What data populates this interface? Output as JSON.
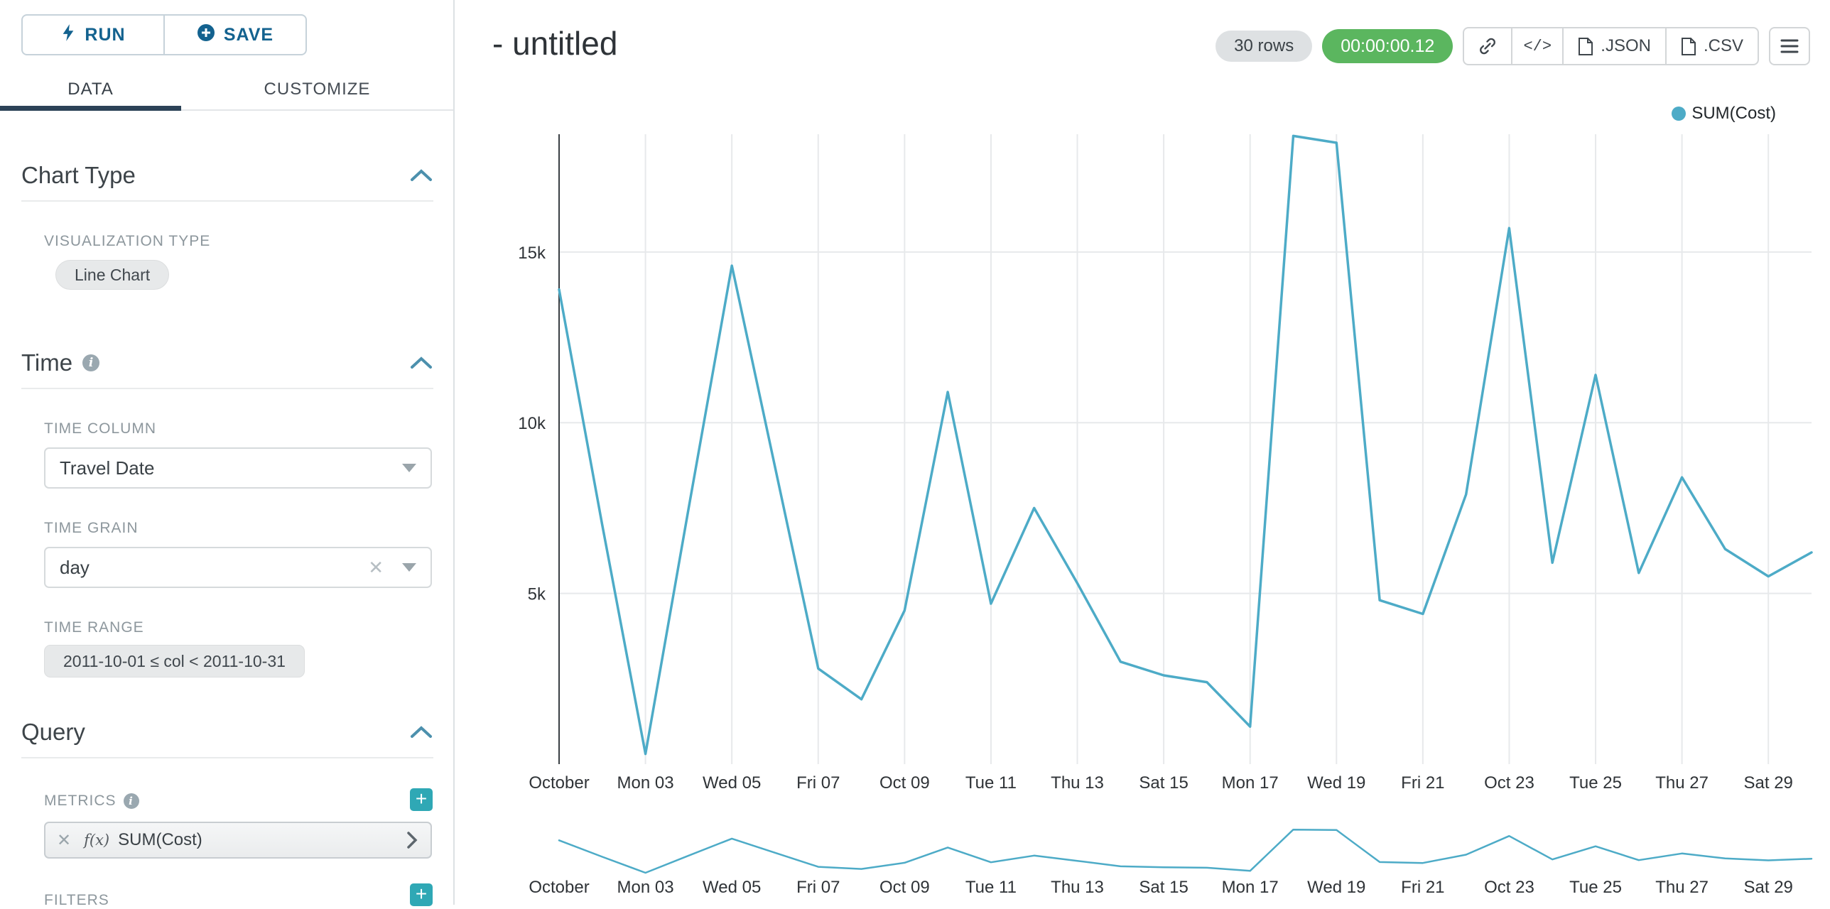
{
  "sidebar": {
    "run_label": "RUN",
    "save_label": "SAVE",
    "tabs": {
      "data": "DATA",
      "customize": "CUSTOMIZE"
    },
    "chart_type": {
      "title": "Chart Type",
      "viz_type_label": "VISUALIZATION TYPE",
      "viz_type_value": "Line Chart"
    },
    "time": {
      "title": "Time",
      "time_column_label": "TIME COLUMN",
      "time_column_value": "Travel Date",
      "time_grain_label": "TIME GRAIN",
      "time_grain_value": "day",
      "time_range_label": "TIME RANGE",
      "time_range_value": "2011-10-01 ≤ col < 2011-10-31"
    },
    "query": {
      "title": "Query",
      "metrics_label": "METRICS",
      "metric_fx": "f(x)",
      "metric_name": "SUM(Cost)",
      "filters_label": "FILTERS"
    }
  },
  "header": {
    "title": "- untitled",
    "row_count": "30 rows",
    "query_time": "00:00:00.12",
    "embed_glyph": "</>",
    "json_label": ".JSON",
    "csv_label": ".CSV"
  },
  "legend": {
    "label": "SUM(Cost)",
    "color": "#4dabc7"
  },
  "icons": {
    "run": "lightning-bolt",
    "save": "plus-circle",
    "section_collapse": "chevron-up",
    "info": "info-circle",
    "dropdown": "caret-down",
    "clear": "x",
    "add": "plus",
    "share": "link",
    "embed": "code",
    "export": "document",
    "menu": "hamburger",
    "metric_expand": "chevron-right"
  },
  "colors": {
    "accent_navy": "#13628f",
    "tab_underline": "#2c4257",
    "teal_button": "#2fa8b5",
    "line": "#4dabc7",
    "success_green": "#5bb65f"
  },
  "chart_data": {
    "type": "line",
    "title": "",
    "x": [
      "2011-10-01",
      "2011-10-02",
      "2011-10-03",
      "2011-10-04",
      "2011-10-05",
      "2011-10-06",
      "2011-10-07",
      "2011-10-08",
      "2011-10-09",
      "2011-10-10",
      "2011-10-11",
      "2011-10-12",
      "2011-10-13",
      "2011-10-14",
      "2011-10-15",
      "2011-10-16",
      "2011-10-17",
      "2011-10-18",
      "2011-10-19",
      "2011-10-20",
      "2011-10-21",
      "2011-10-22",
      "2011-10-23",
      "2011-10-24",
      "2011-10-25",
      "2011-10-26",
      "2011-10-27",
      "2011-10-28",
      "2011-10-29",
      "2011-10-30"
    ],
    "series": [
      {
        "name": "SUM(Cost)",
        "values": [
          13900,
          7000,
          300,
          7500,
          14600,
          8700,
          2800,
          1900,
          4500,
          10900,
          4700,
          7500,
          5300,
          3000,
          2600,
          2400,
          1100,
          18400,
          18200,
          4800,
          4400,
          7900,
          15700,
          5900,
          11400,
          5600,
          8400,
          6300,
          5500,
          6200
        ]
      }
    ],
    "x_tick_days": [
      1,
      3,
      5,
      7,
      9,
      11,
      13,
      15,
      17,
      19,
      21,
      23,
      25,
      27,
      29
    ],
    "x_tick_labels": [
      "October",
      "Mon 03",
      "Wed 05",
      "Fri 07",
      "Oct 09",
      "Tue 11",
      "Thu 13",
      "Sat 15",
      "Mon 17",
      "Wed 19",
      "Fri 21",
      "Oct 23",
      "Tue 25",
      "Thu 27",
      "Sat 29"
    ],
    "y_ticks": [
      {
        "value": 5000,
        "label": "5k"
      },
      {
        "value": 10000,
        "label": "10k"
      },
      {
        "value": 15000,
        "label": "15k"
      }
    ],
    "ylim": [
      0,
      18450
    ],
    "xlabel": "",
    "ylabel": "",
    "grid": true,
    "legend_position": "top-right",
    "line_color": "#4dabc7",
    "has_range_brush_chart": true
  }
}
